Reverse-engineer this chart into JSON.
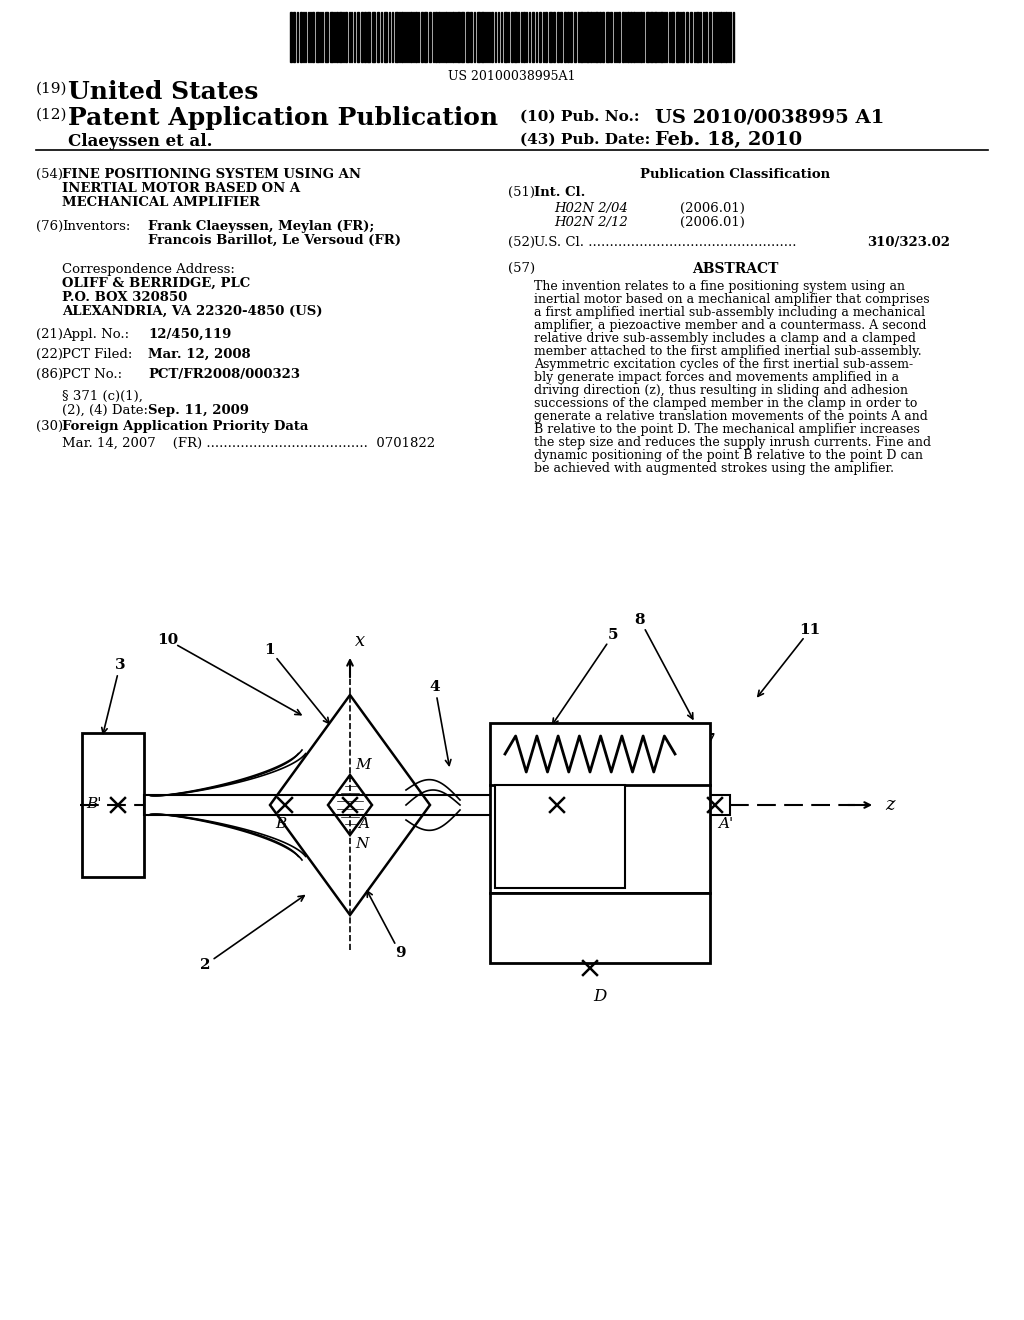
{
  "bg_color": "#ffffff",
  "barcode_text": "US 20100038995A1",
  "title_number": "(19)",
  "title_country": "United States",
  "sub_number": "(12)",
  "sub_title": "Patent Application Publication",
  "pub_no_label": "(10) Pub. No.:",
  "pub_no_value": "US 2010/0038995 A1",
  "authors": "Claeyssen et al.",
  "pub_date_label": "(43) Pub. Date:",
  "pub_date_value": "Feb. 18, 2010",
  "field54_num": "(54)",
  "field54_lines": [
    "FINE POSITIONING SYSTEM USING AN",
    "INERTIAL MOTOR BASED ON A",
    "MECHANICAL AMPLIFIER"
  ],
  "field76_num": "(76)",
  "field76_label": "Inventors:",
  "field76_value1": "Frank Claeyssen, Meylan (FR);",
  "field76_value2": "Francois Barillot, Le Versoud (FR)",
  "corr_label": "Correspondence Address:",
  "corr_firm": "OLIFF & BERRIDGE, PLC",
  "corr_addr1": "P.O. BOX 320850",
  "corr_addr2": "ALEXANDRIA, VA 22320-4850 (US)",
  "field21_num": "(21)",
  "field21_label": "Appl. No.:",
  "field21_value": "12/450,119",
  "field22_num": "(22)",
  "field22_label": "PCT Filed:",
  "field22_value": "Mar. 12, 2008",
  "field86_num": "(86)",
  "field86_label": "PCT No.:",
  "field86_value": "PCT/FR2008/000323",
  "field371_label1": "§ 371 (c)(1),",
  "field371_label2": "(2), (4) Date:",
  "field371_value": "Sep. 11, 2009",
  "field30_num": "(30)",
  "field30_label": "Foreign Application Priority Data",
  "field30_detail": "Mar. 14, 2007    (FR) ......................................  0701822",
  "pub_class_title": "Publication Classification",
  "field51_num": "(51)",
  "field51_label": "Int. Cl.",
  "field51_class1": "H02N 2/04",
  "field51_date1": "(2006.01)",
  "field51_class2": "H02N 2/12",
  "field51_date2": "(2006.01)",
  "field52_num": "(52)",
  "field52_text": "U.S. Cl. .................................................",
  "field52_value": "310/323.02",
  "field57_num": "(57)",
  "field57_label": "ABSTRACT",
  "abstract_lines": [
    "The invention relates to a fine positioning system using an",
    "inertial motor based on a mechanical amplifier that comprises",
    "a first amplified inertial sub-assembly including a mechanical",
    "amplifier, a piezoactive member and a countermass. A second",
    "relative drive sub-assembly includes a clamp and a clamped",
    "member attached to the first amplified inertial sub-assembly.",
    "Asymmetric excitation cycles of the first inertial sub-assem-",
    "bly generate impact forces and movements amplified in a",
    "driving direction (z), thus resulting in sliding and adhesion",
    "successions of the clamped member in the clamp in order to",
    "generate a relative translation movements of the points A and",
    "B relative to the point D. The mechanical amplifier increases",
    "the step size and reduces the supply inrush currents. Fine and",
    "dynamic positioning of the point B relative to the point D can",
    "be achieved with augmented strokes using the amplifier."
  ]
}
